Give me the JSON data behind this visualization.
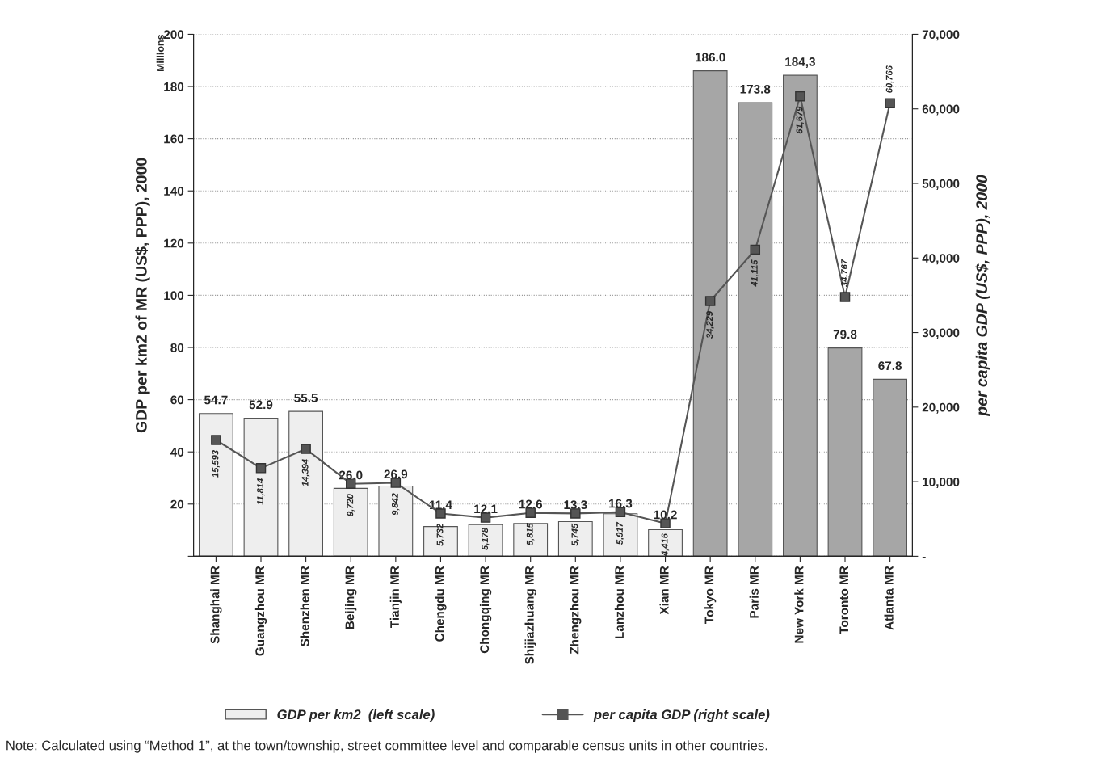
{
  "chart_data": {
    "type": "bar",
    "ylabel": "GDP per km2 of MR (US$, PPP), 2000",
    "y2label": "per capita GDP (US$, PPP), 2000",
    "categories": [
      "Shanghai MR",
      "Guangzhou MR",
      "Shenzhen MR",
      "Beijing MR",
      "Tianjin MR",
      "Chengdu MR",
      "Chongqing MR",
      "Shijiazhuang MR",
      "Zhengzhou MR",
      "Lanzhou MR",
      "Xian MR",
      "Tokyo MR",
      "Paris MR",
      "New York MR",
      "Toronto MR",
      "Atlanta MR"
    ],
    "series": [
      {
        "name": "GDP per km2  (left scale)",
        "color": "#eeeeee",
        "colors": [
          "#eeeeee",
          "#eeeeee",
          "#eeeeee",
          "#eeeeee",
          "#eeeeee",
          "#eeeeee",
          "#eeeeee",
          "#eeeeee",
          "#eeeeee",
          "#eeeeee",
          "#eeeeee",
          "#a6a6a6",
          "#a6a6a6",
          "#a6a6a6",
          "#a6a6a6",
          "#a6a6a6"
        ],
        "values": [
          54.7,
          52.9,
          55.5,
          26.0,
          26.9,
          11.4,
          12.1,
          12.6,
          13.3,
          16.3,
          10.2,
          186.0,
          173.8,
          184.3,
          79.8,
          67.8
        ],
        "value_labels": [
          "54.7",
          "52.9",
          "55.5",
          "26.0",
          "26.9",
          "11.4",
          "12.1",
          "12.6",
          "13.3",
          "16.3",
          "10.2",
          "186.0",
          "173.8",
          "184,3",
          "79.8",
          "67.8"
        ]
      },
      {
        "name": "per capita GDP (right scale)",
        "type": "line",
        "axis": "y2",
        "color": "#555555",
        "marker": "square",
        "values": [
          15593,
          11814,
          14394,
          9720,
          9842,
          5732,
          5178,
          5815,
          5745,
          5917,
          4416,
          34229,
          41115,
          61679,
          34767,
          60766
        ],
        "value_labels": [
          "15,593",
          "11,814",
          "14,394",
          "9,720",
          "9,842",
          "5,732",
          "5,178",
          "5,815",
          "5,745",
          "5,917",
          "4,416",
          "34,229",
          "41,115",
          "61,679",
          "34,767",
          "60,766"
        ]
      }
    ],
    "ylim": [
      0,
      200
    ],
    "yticks": [
      {
        "value": 0,
        "label": null
      },
      20,
      40,
      60,
      80,
      100,
      120,
      140,
      160,
      180,
      200
    ],
    "y2lim": [
      0,
      70000
    ],
    "y2ticks": [
      {
        "value": 0,
        "label": "-"
      },
      {
        "value": 10000,
        "label": "10,000"
      },
      {
        "value": 20000,
        "label": "20,000"
      },
      {
        "value": 30000,
        "label": "30,000"
      },
      {
        "value": 40000,
        "label": "40,000"
      },
      {
        "value": 50000,
        "label": "50,000"
      },
      {
        "value": 60000,
        "label": "60,000"
      },
      {
        "value": 70000,
        "label": "70,000"
      }
    ],
    "grid": "y",
    "legend": "bottom",
    "annotations": [
      "Millions",
      "Note: Calculated using “Method 1”, at the town/township, street committee level and comparable census units in other countries."
    ]
  }
}
